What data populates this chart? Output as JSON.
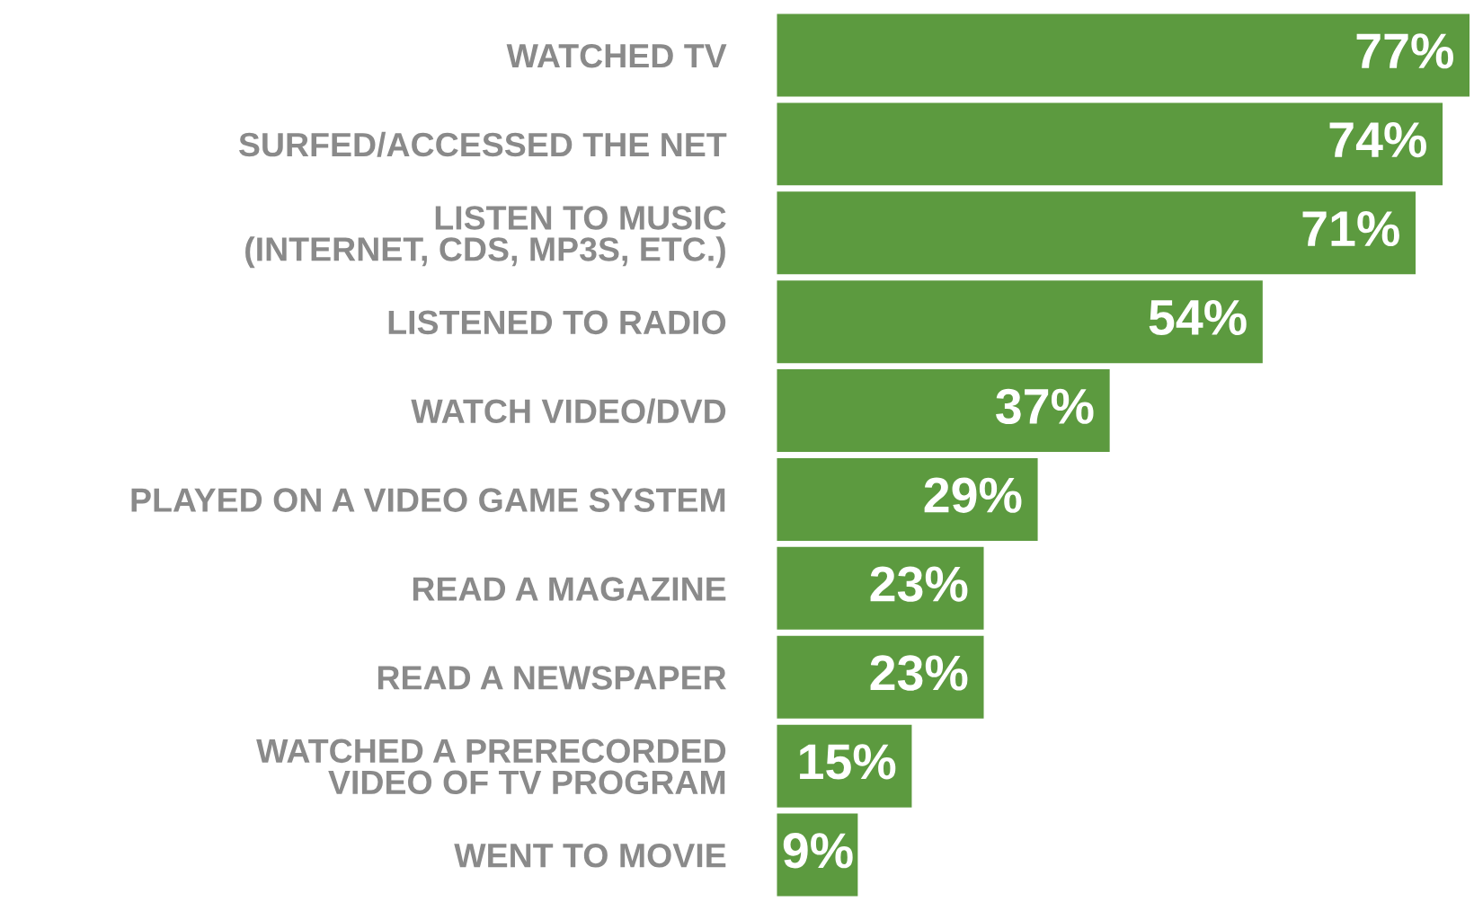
{
  "chart_data": {
    "type": "bar",
    "orientation": "horizontal",
    "categories": [
      "WATCHED TV",
      "SURFED/ACCESSED THE NET",
      "LISTEN TO MUSIC\n(INTERNET, CDS, MP3S, ETC.)",
      "LISTENED TO RADIO",
      "WATCH VIDEO/DVD",
      "PLAYED ON A VIDEO GAME SYSTEM",
      "READ A MAGAZINE",
      "READ A NEWSPAPER",
      "WATCHED A PRERECORDED\nVIDEO OF TV PROGRAM",
      "WENT TO MOVIE"
    ],
    "values": [
      77,
      74,
      71,
      54,
      37,
      29,
      23,
      23,
      15,
      9
    ],
    "value_labels": [
      "77%",
      "74%",
      "71%",
      "54%",
      "37%",
      "29%",
      "23%",
      "23%",
      "15%",
      "9%"
    ],
    "color": "#5c9a3f",
    "grid": false,
    "legend": false
  }
}
